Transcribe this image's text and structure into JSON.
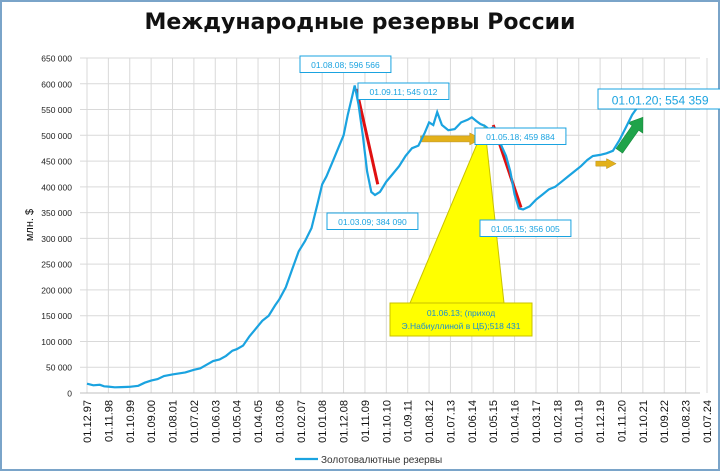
{
  "chart_data": {
    "type": "line",
    "title": "Международные резервы России",
    "ylabel": "млн. $",
    "ylim": [
      0,
      650000
    ],
    "yticks": [
      "0",
      "50 000",
      "100 000",
      "150 000",
      "200 000",
      "250 000",
      "300 000",
      "350 000",
      "400 000",
      "450 000",
      "500 000",
      "550 000",
      "600 000",
      "650 000"
    ],
    "xticks": [
      "01.12.97",
      "01.11.98",
      "01.10.99",
      "01.09.00",
      "01.08.01",
      "01.07.02",
      "01.06.03",
      "01.05.04",
      "01.04.05",
      "01.03.06",
      "01.02.07",
      "01.01.08",
      "01.12.08",
      "01.11.09",
      "01.10.10",
      "01.09.11",
      "01.08.12",
      "01.07.13",
      "01.06.14",
      "01.05.15",
      "01.04.16",
      "01.03.17",
      "01.02.18",
      "01.01.19",
      "01.12.19",
      "01.11.20",
      "01.10.21",
      "01.09.22",
      "01.08.23",
      "01.07.24"
    ],
    "grid": true,
    "legend_position": "bottom",
    "series": [
      {
        "name": "Золотовалютные резервы",
        "color": "#1aa3e0",
        "points": [
          [
            0,
            18000
          ],
          [
            0.3,
            15000
          ],
          [
            0.6,
            16000
          ],
          [
            0.8,
            13000
          ],
          [
            1.0,
            12500
          ],
          [
            1.3,
            11000
          ],
          [
            1.6,
            11500
          ],
          [
            2.0,
            12000
          ],
          [
            2.4,
            14000
          ],
          [
            2.7,
            20000
          ],
          [
            3.0,
            24000
          ],
          [
            3.3,
            27000
          ],
          [
            3.6,
            33000
          ],
          [
            4.0,
            36000
          ],
          [
            4.3,
            38000
          ],
          [
            4.6,
            40000
          ],
          [
            5.0,
            45000
          ],
          [
            5.3,
            48000
          ],
          [
            5.6,
            55000
          ],
          [
            5.9,
            62000
          ],
          [
            6.2,
            65000
          ],
          [
            6.5,
            72000
          ],
          [
            6.8,
            82000
          ],
          [
            7.0,
            85000
          ],
          [
            7.3,
            92000
          ],
          [
            7.6,
            110000
          ],
          [
            7.9,
            125000
          ],
          [
            8.2,
            140000
          ],
          [
            8.5,
            150000
          ],
          [
            8.8,
            170000
          ],
          [
            9.0,
            182000
          ],
          [
            9.3,
            205000
          ],
          [
            9.6,
            240000
          ],
          [
            9.9,
            275000
          ],
          [
            10.2,
            295000
          ],
          [
            10.5,
            320000
          ],
          [
            10.8,
            370000
          ],
          [
            11.0,
            405000
          ],
          [
            11.2,
            420000
          ],
          [
            11.5,
            450000
          ],
          [
            11.8,
            480000
          ],
          [
            12.0,
            500000
          ],
          [
            12.2,
            540000
          ],
          [
            12.4,
            575000
          ],
          [
            12.52,
            596566
          ],
          [
            12.7,
            560000
          ],
          [
            12.9,
            500000
          ],
          [
            13.1,
            430000
          ],
          [
            13.3,
            390000
          ],
          [
            13.47,
            384090
          ],
          [
            13.7,
            390000
          ],
          [
            14.0,
            410000
          ],
          [
            14.3,
            425000
          ],
          [
            14.6,
            440000
          ],
          [
            14.9,
            460000
          ],
          [
            15.2,
            475000
          ],
          [
            15.5,
            480000
          ],
          [
            15.8,
            505000
          ],
          [
            16.0,
            525000
          ],
          [
            16.2,
            520000
          ],
          [
            16.38,
            545012
          ],
          [
            16.6,
            520000
          ],
          [
            16.9,
            510000
          ],
          [
            17.2,
            512000
          ],
          [
            17.5,
            525000
          ],
          [
            17.8,
            530000
          ],
          [
            18.0,
            535000
          ],
          [
            18.2,
            528000
          ],
          [
            18.4,
            522000
          ],
          [
            18.6,
            518431
          ],
          [
            18.8,
            512000
          ],
          [
            19.0,
            515000
          ],
          [
            19.2,
            502000
          ],
          [
            19.4,
            478000
          ],
          [
            19.6,
            460000
          ],
          [
            19.8,
            430000
          ],
          [
            20.0,
            385000
          ],
          [
            20.2,
            358000
          ],
          [
            20.4,
            356005
          ],
          [
            20.7,
            362000
          ],
          [
            21.0,
            375000
          ],
          [
            21.3,
            385000
          ],
          [
            21.6,
            395000
          ],
          [
            21.9,
            400000
          ],
          [
            22.2,
            410000
          ],
          [
            22.5,
            420000
          ],
          [
            22.8,
            430000
          ],
          [
            23.1,
            440000
          ],
          [
            23.4,
            452000
          ],
          [
            23.66,
            459884
          ],
          [
            24.0,
            462000
          ],
          [
            24.3,
            465000
          ],
          [
            24.6,
            470000
          ],
          [
            24.9,
            490000
          ],
          [
            25.2,
            515000
          ],
          [
            25.5,
            540000
          ],
          [
            25.75,
            554359
          ]
        ]
      }
    ],
    "annotations": [
      {
        "text": "01.08.08; 596 566",
        "x": 12.52,
        "y": 596566,
        "color": "#1aa3e0"
      },
      {
        "text": "01.03.09; 384 090",
        "x": 13.47,
        "y": 384090,
        "color": "#1aa3e0"
      },
      {
        "text": "01.09.11; 545 012",
        "x": 16.38,
        "y": 545012,
        "color": "#1aa3e0"
      },
      {
        "text": "01.05.15; 356 005",
        "x": 20.4,
        "y": 356005,
        "color": "#1aa3e0"
      },
      {
        "text": "01.05.18; 459 884",
        "x": 23.66,
        "y": 459884,
        "color": "#1aa3e0"
      },
      {
        "text": "01.01.20; 554 359",
        "x": 25.75,
        "y": 554359,
        "color": "#1aa3e0"
      }
    ],
    "callout": {
      "line1": "01.06.13; (приход",
      "line2": "Э.Набиуллиной в ЦБ);518 431",
      "x": 18.6,
      "y": 518431,
      "fill": "#ffff00"
    }
  }
}
